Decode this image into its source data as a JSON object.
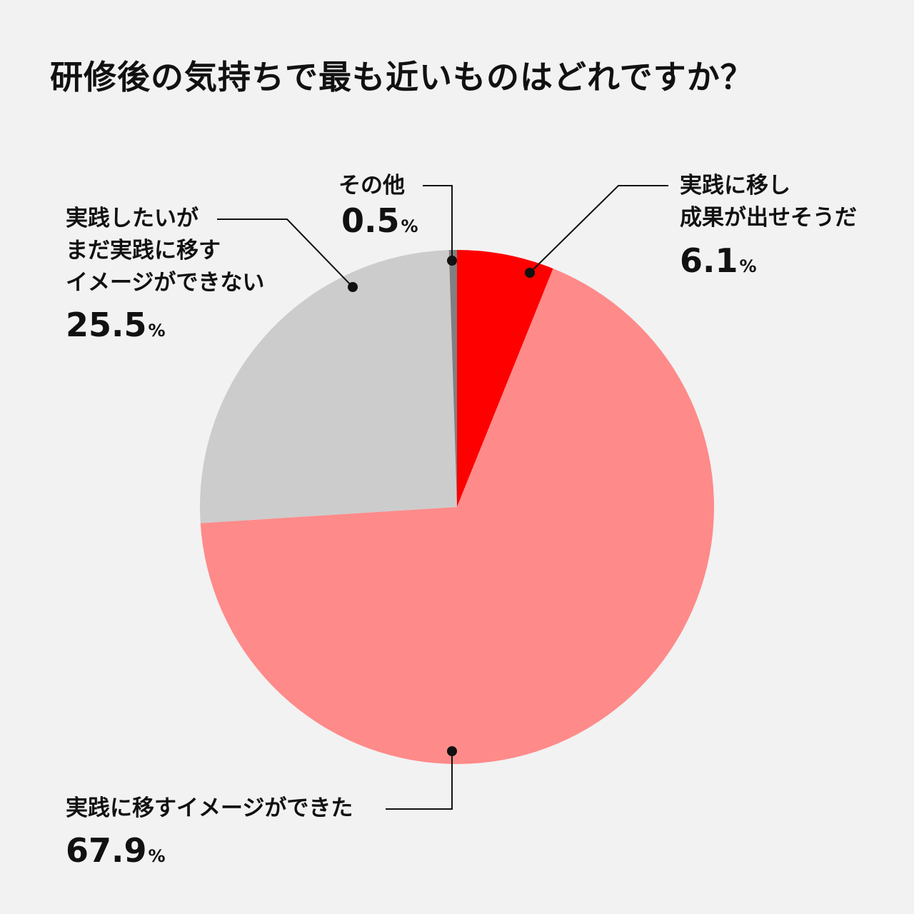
{
  "title": "研修後の気持ちで最も近いものはどれですか？",
  "chart_data": {
    "type": "pie",
    "title": "研修後の気持ちで最も近いものはどれですか？",
    "slices": [
      {
        "label": "実践に移し成果が出せそうだ",
        "label_lines": [
          "実践に移し",
          "成果が出せそうだ"
        ],
        "value": 6.1,
        "value_text": "6.1",
        "color": "#ff0000"
      },
      {
        "label": "実践に移すイメージができた",
        "label_lines": [
          "実践に移すイメージができた"
        ],
        "value": 67.9,
        "value_text": "67.9",
        "color": "#ff8a8a"
      },
      {
        "label": "実践したいがまだ実践に移すイメージができない",
        "label_lines": [
          "実践したいが",
          "まだ実践に移す",
          "イメージができない"
        ],
        "value": 25.5,
        "value_text": "25.5",
        "color": "#cccccc"
      },
      {
        "label": "その他",
        "label_lines": [
          "その他"
        ],
        "value": 0.5,
        "value_text": "0.5",
        "color": "#808080"
      }
    ],
    "unit": "%",
    "start_angle": "12 o'clock",
    "direction": "clockwise"
  }
}
